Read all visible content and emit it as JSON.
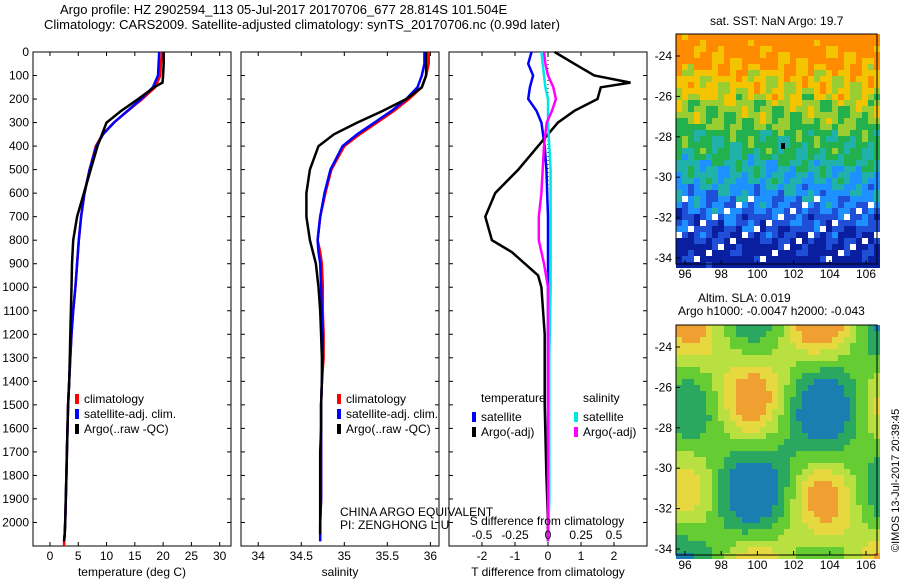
{
  "header": {
    "line1": "Argo profile: HZ 2902594_113 05-Jul-2017 20170706_677 28.814S 101.504E",
    "line2": "Climatology: CARS2009. Satellite-adjusted climatology: synTS_20170706.nc (0.99d later)"
  },
  "colors": {
    "climatology": "#ff0000",
    "satellite": "#0000ff",
    "argo": "#000000",
    "sat_diff": "#00e5e5",
    "argo_diff": "#ff00ff"
  },
  "side": {
    "sst_title": "sat. SST: NaN Argo: 19.7",
    "sla_title1": "Altim. SLA: 0.019",
    "sla_title2": "Argo h1000: -0.0047 h2000: -0.043",
    "credit": "©IMOS 13-Jul-2017 20:39:45",
    "lat_ticks": [
      "-24",
      "-26",
      "-28",
      "-30",
      "-32",
      "-34"
    ],
    "lon_ticks": [
      "96",
      "98",
      "100",
      "102",
      "104",
      "106"
    ]
  },
  "annotation": {
    "line1": "CHINA ARGO EQUIVALENT",
    "line2": "PI: ZENGHONG LIU"
  },
  "chart_data": [
    {
      "type": "line",
      "xlabel": "temperature (deg C)",
      "xlim": [
        -3,
        32
      ],
      "ylim": [
        0,
        2100
      ],
      "xticks": [
        "0",
        "5",
        "10",
        "15",
        "20",
        "25",
        "30"
      ],
      "yticks": [
        "0",
        "100",
        "200",
        "300",
        "400",
        "500",
        "600",
        "700",
        "800",
        "900",
        "1000",
        "1100",
        "1200",
        "1300",
        "1400",
        "1500",
        "1600",
        "1700",
        "1800",
        "1900",
        "2000"
      ],
      "legend": [
        "climatology",
        "satellite-adj. clim.",
        "Argo(..raw -QC)"
      ],
      "series": [
        {
          "name": "climatology",
          "x": [
            19.8,
            19.6,
            19.5,
            18.6,
            16.3,
            13.8,
            11.3,
            9.3,
            8.1,
            7.0,
            6.1,
            5.5,
            5.1,
            4.8,
            4.5,
            4.1,
            3.8,
            3.6,
            3.4,
            3.2,
            3.1,
            3.0,
            2.9,
            2.8,
            2.7,
            2.6,
            2.5,
            2.5
          ],
          "y": [
            0,
            50,
            100,
            150,
            200,
            250,
            300,
            350,
            400,
            500,
            600,
            700,
            800,
            900,
            1000,
            1100,
            1200,
            1300,
            1400,
            1500,
            1600,
            1700,
            1800,
            1900,
            2000,
            2050,
            2080,
            2100
          ]
        },
        {
          "name": "satellite-adj. clim.",
          "x": [
            19.3,
            19.2,
            19.1,
            18.2,
            16.1,
            13.7,
            11.3,
            9.4,
            8.2,
            7.0,
            6.1,
            5.5,
            5.1,
            4.8,
            4.5,
            4.1,
            3.8,
            3.6,
            3.4,
            3.2,
            3.1,
            3.0,
            2.9,
            2.8,
            2.7,
            2.6,
            2.5
          ],
          "y": [
            0,
            50,
            100,
            150,
            200,
            250,
            300,
            350,
            400,
            500,
            600,
            700,
            800,
            900,
            1000,
            1100,
            1200,
            1300,
            1400,
            1500,
            1600,
            1700,
            1800,
            1900,
            2000,
            2050,
            2080
          ]
        },
        {
          "name": "Argo(..raw -QC)",
          "x": [
            20.1,
            20.1,
            20.0,
            19.9,
            18.4,
            15.6,
            12.6,
            10.0,
            8.4,
            7.2,
            6.0,
            4.8,
            4.1,
            3.9,
            3.8,
            3.7,
            3.6,
            3.5,
            3.4,
            3.2,
            3.1,
            3.0,
            2.9,
            2.8,
            2.7,
            2.6,
            2.5
          ],
          "y": [
            0,
            50,
            100,
            130,
            150,
            200,
            250,
            300,
            400,
            500,
            600,
            700,
            800,
            900,
            1000,
            1100,
            1200,
            1300,
            1400,
            1500,
            1600,
            1700,
            1800,
            1900,
            2000,
            2050,
            2080
          ]
        }
      ]
    },
    {
      "type": "line",
      "xlabel": "salinity",
      "xlim": [
        33.8,
        36.1
      ],
      "ylim": [
        0,
        2100
      ],
      "xticks": [
        "34",
        "34.5",
        "35",
        "35.5",
        "36"
      ],
      "legend": [
        "climatology",
        "satellite-adj. clim.",
        "Argo(..raw -QC)"
      ],
      "series": [
        {
          "name": "climatology",
          "x": [
            35.98,
            35.98,
            35.95,
            35.9,
            35.75,
            35.58,
            35.38,
            35.18,
            35.0,
            34.85,
            34.78,
            34.72,
            34.69,
            34.72,
            34.74,
            34.75,
            34.75,
            34.76,
            34.76,
            34.74,
            34.73,
            34.73,
            34.73,
            34.73,
            34.73,
            34.72,
            34.72,
            34.72
          ],
          "y": [
            0,
            50,
            100,
            150,
            200,
            250,
            300,
            350,
            400,
            500,
            600,
            700,
            800,
            850,
            900,
            1000,
            1100,
            1200,
            1300,
            1400,
            1500,
            1600,
            1700,
            1800,
            1900,
            2000,
            2050,
            2080
          ]
        },
        {
          "name": "satellite-adj. clim.",
          "x": [
            35.93,
            35.93,
            35.9,
            35.85,
            35.72,
            35.55,
            35.35,
            35.15,
            34.98,
            34.84,
            34.77,
            34.72,
            34.69,
            34.7,
            34.72,
            34.73,
            34.74,
            34.75,
            34.75,
            34.74,
            34.73,
            34.73,
            34.73,
            34.73,
            34.73,
            34.72,
            34.72,
            34.72
          ],
          "y": [
            0,
            50,
            100,
            150,
            200,
            250,
            300,
            350,
            400,
            500,
            600,
            700,
            800,
            850,
            900,
            1000,
            1100,
            1200,
            1300,
            1400,
            1500,
            1600,
            1700,
            1800,
            1900,
            2000,
            2050,
            2080
          ]
        },
        {
          "name": "Argo(..raw -QC)",
          "x": [
            35.95,
            35.95,
            35.95,
            35.9,
            35.72,
            35.45,
            35.15,
            34.88,
            34.7,
            34.6,
            34.56,
            34.56,
            34.6,
            34.67,
            34.7,
            34.72,
            34.73,
            34.74,
            34.74,
            34.73,
            34.73,
            34.72,
            34.72,
            34.72,
            34.72,
            34.72
          ],
          "y": [
            0,
            50,
            100,
            150,
            200,
            250,
            300,
            350,
            400,
            500,
            600,
            700,
            800,
            900,
            1000,
            1100,
            1200,
            1300,
            1400,
            1500,
            1600,
            1700,
            1800,
            1900,
            2000,
            2050
          ]
        }
      ]
    },
    {
      "type": "line",
      "xlabel": "T difference from climatology",
      "x2label": "S difference from climatology",
      "xlim": [
        -3,
        3
      ],
      "x2lim": [
        -0.75,
        0.75
      ],
      "ylim": [
        0,
        2100
      ],
      "xticks": [
        "-2",
        "-1",
        "0",
        "1",
        "2"
      ],
      "x2ticks": [
        "-0.5",
        "-0.25",
        "0",
        "0.25",
        "0.5"
      ],
      "legend_temperature": "temperature",
      "legend_salinity": "salinity",
      "legend": [
        "satellite",
        "Argo(-adj)",
        "satellite",
        "Argo(-adj)"
      ],
      "series": [
        {
          "name": "satellite",
          "group": "temperature",
          "axis": "T",
          "x": [
            -0.5,
            -0.6,
            -0.45,
            -0.55,
            -0.6,
            -0.35,
            -0.2,
            -0.1,
            -0.05,
            0,
            0,
            0,
            0,
            0,
            0,
            0,
            0
          ],
          "y": [
            0,
            50,
            100,
            150,
            200,
            250,
            300,
            400,
            500,
            700,
            900,
            1100,
            1300,
            1500,
            1700,
            1900,
            2080
          ]
        },
        {
          "name": "Argo(-adj)",
          "group": "temperature",
          "axis": "T",
          "x": [
            0.2,
            0.8,
            1.4,
            2.5,
            1.6,
            1.5,
            0.8,
            0.3,
            -0.3,
            -0.9,
            -1.6,
            -1.9,
            -1.7,
            -1.1,
            -0.7,
            -0.3,
            -0.2,
            -0.1,
            -0.1,
            -0.05,
            0,
            0
          ],
          "y": [
            0,
            50,
            100,
            130,
            150,
            200,
            250,
            300,
            400,
            500,
            600,
            700,
            800,
            850,
            900,
            950,
            1000,
            1200,
            1500,
            1800,
            2000,
            2080
          ]
        },
        {
          "name": "satellite",
          "group": "salinity",
          "axis": "S",
          "x": [
            -0.05,
            -0.04,
            -0.03,
            -0.02,
            0,
            0,
            0.01,
            0.02,
            0.02,
            0.02,
            0.02,
            0.02,
            0.02,
            0.01,
            0.01,
            0.01,
            0.0
          ],
          "y": [
            0,
            50,
            100,
            150,
            200,
            300,
            400,
            500,
            600,
            700,
            800,
            900,
            1000,
            1300,
            1600,
            1900,
            2080
          ]
        },
        {
          "name": "Argo(-adj)",
          "group": "salinity",
          "axis": "S",
          "x": [
            -0.03,
            -0.02,
            0.0,
            0.04,
            0.06,
            0.03,
            -0.01,
            -0.03,
            -0.04,
            -0.05,
            -0.07,
            -0.07,
            -0.03,
            0.0,
            0.0,
            0.0,
            0.0
          ],
          "y": [
            0,
            50,
            100,
            150,
            200,
            250,
            300,
            400,
            500,
            600,
            700,
            800,
            900,
            1000,
            1300,
            1700,
            2080
          ]
        }
      ]
    }
  ]
}
